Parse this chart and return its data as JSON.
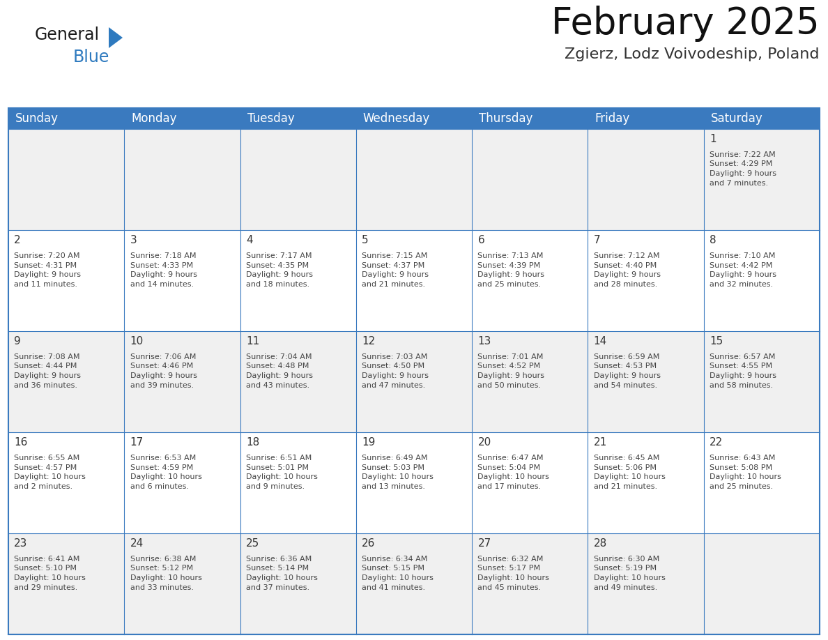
{
  "title": "February 2025",
  "subtitle": "Zgierz, Lodz Voivodeship, Poland",
  "header_color": "#3a7abf",
  "header_text_color": "#ffffff",
  "days_of_week": [
    "Sunday",
    "Monday",
    "Tuesday",
    "Wednesday",
    "Thursday",
    "Friday",
    "Saturday"
  ],
  "cell_bg_even": "#f0f0f0",
  "cell_bg_odd": "#ffffff",
  "border_color": "#3a7abf",
  "text_color": "#333333",
  "day_num_color": "#333333",
  "info_text_color": "#444444",
  "logo_general_color": "#1a1a1a",
  "logo_blue_color": "#2e7abf",
  "title_fontsize": 38,
  "subtitle_fontsize": 16,
  "dow_fontsize": 12,
  "day_num_fontsize": 11,
  "info_fontsize": 8.0,
  "weeks": [
    [
      {
        "day": null,
        "info": null
      },
      {
        "day": null,
        "info": null
      },
      {
        "day": null,
        "info": null
      },
      {
        "day": null,
        "info": null
      },
      {
        "day": null,
        "info": null
      },
      {
        "day": null,
        "info": null
      },
      {
        "day": 1,
        "info": "Sunrise: 7:22 AM\nSunset: 4:29 PM\nDaylight: 9 hours\nand 7 minutes."
      }
    ],
    [
      {
        "day": 2,
        "info": "Sunrise: 7:20 AM\nSunset: 4:31 PM\nDaylight: 9 hours\nand 11 minutes."
      },
      {
        "day": 3,
        "info": "Sunrise: 7:18 AM\nSunset: 4:33 PM\nDaylight: 9 hours\nand 14 minutes."
      },
      {
        "day": 4,
        "info": "Sunrise: 7:17 AM\nSunset: 4:35 PM\nDaylight: 9 hours\nand 18 minutes."
      },
      {
        "day": 5,
        "info": "Sunrise: 7:15 AM\nSunset: 4:37 PM\nDaylight: 9 hours\nand 21 minutes."
      },
      {
        "day": 6,
        "info": "Sunrise: 7:13 AM\nSunset: 4:39 PM\nDaylight: 9 hours\nand 25 minutes."
      },
      {
        "day": 7,
        "info": "Sunrise: 7:12 AM\nSunset: 4:40 PM\nDaylight: 9 hours\nand 28 minutes."
      },
      {
        "day": 8,
        "info": "Sunrise: 7:10 AM\nSunset: 4:42 PM\nDaylight: 9 hours\nand 32 minutes."
      }
    ],
    [
      {
        "day": 9,
        "info": "Sunrise: 7:08 AM\nSunset: 4:44 PM\nDaylight: 9 hours\nand 36 minutes."
      },
      {
        "day": 10,
        "info": "Sunrise: 7:06 AM\nSunset: 4:46 PM\nDaylight: 9 hours\nand 39 minutes."
      },
      {
        "day": 11,
        "info": "Sunrise: 7:04 AM\nSunset: 4:48 PM\nDaylight: 9 hours\nand 43 minutes."
      },
      {
        "day": 12,
        "info": "Sunrise: 7:03 AM\nSunset: 4:50 PM\nDaylight: 9 hours\nand 47 minutes."
      },
      {
        "day": 13,
        "info": "Sunrise: 7:01 AM\nSunset: 4:52 PM\nDaylight: 9 hours\nand 50 minutes."
      },
      {
        "day": 14,
        "info": "Sunrise: 6:59 AM\nSunset: 4:53 PM\nDaylight: 9 hours\nand 54 minutes."
      },
      {
        "day": 15,
        "info": "Sunrise: 6:57 AM\nSunset: 4:55 PM\nDaylight: 9 hours\nand 58 minutes."
      }
    ],
    [
      {
        "day": 16,
        "info": "Sunrise: 6:55 AM\nSunset: 4:57 PM\nDaylight: 10 hours\nand 2 minutes."
      },
      {
        "day": 17,
        "info": "Sunrise: 6:53 AM\nSunset: 4:59 PM\nDaylight: 10 hours\nand 6 minutes."
      },
      {
        "day": 18,
        "info": "Sunrise: 6:51 AM\nSunset: 5:01 PM\nDaylight: 10 hours\nand 9 minutes."
      },
      {
        "day": 19,
        "info": "Sunrise: 6:49 AM\nSunset: 5:03 PM\nDaylight: 10 hours\nand 13 minutes."
      },
      {
        "day": 20,
        "info": "Sunrise: 6:47 AM\nSunset: 5:04 PM\nDaylight: 10 hours\nand 17 minutes."
      },
      {
        "day": 21,
        "info": "Sunrise: 6:45 AM\nSunset: 5:06 PM\nDaylight: 10 hours\nand 21 minutes."
      },
      {
        "day": 22,
        "info": "Sunrise: 6:43 AM\nSunset: 5:08 PM\nDaylight: 10 hours\nand 25 minutes."
      }
    ],
    [
      {
        "day": 23,
        "info": "Sunrise: 6:41 AM\nSunset: 5:10 PM\nDaylight: 10 hours\nand 29 minutes."
      },
      {
        "day": 24,
        "info": "Sunrise: 6:38 AM\nSunset: 5:12 PM\nDaylight: 10 hours\nand 33 minutes."
      },
      {
        "day": 25,
        "info": "Sunrise: 6:36 AM\nSunset: 5:14 PM\nDaylight: 10 hours\nand 37 minutes."
      },
      {
        "day": 26,
        "info": "Sunrise: 6:34 AM\nSunset: 5:15 PM\nDaylight: 10 hours\nand 41 minutes."
      },
      {
        "day": 27,
        "info": "Sunrise: 6:32 AM\nSunset: 5:17 PM\nDaylight: 10 hours\nand 45 minutes."
      },
      {
        "day": 28,
        "info": "Sunrise: 6:30 AM\nSunset: 5:19 PM\nDaylight: 10 hours\nand 49 minutes."
      },
      {
        "day": null,
        "info": null
      }
    ]
  ]
}
